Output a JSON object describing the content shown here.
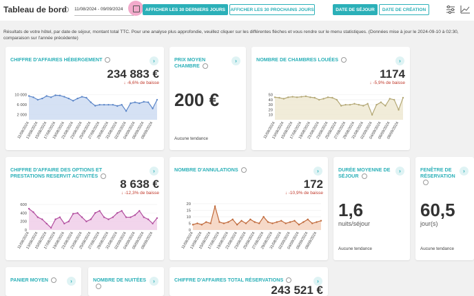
{
  "header": {
    "title": "Tableau de bord",
    "date_range": "11/08/2024 - 09/09/2024",
    "buttons": [
      "AFFICHER LES 30 DERNIERS JOURS",
      "AFFICHER LES 30 PROCHAINS JOURS"
    ],
    "toggles": [
      "DATE DE SÉJOUR",
      "DATE DE CRÉATION"
    ]
  },
  "intro": "Résultats de votre hôtel, par date de séjour, montant total TTC. Pour une analyse plus approfondie, veuillez cliquer sur les différentes flèches et vous rendre sur le menu statistiques. (Données mise à jour le 2024-09-10 à 02:30, comparaison sur l'année précédente)",
  "cards": [
    {
      "title": "CHIFFRE D'AFFAIRES HÉBERGEMENT",
      "value": "234 883 €",
      "trend": "↓ -6,6% de baisse",
      "chart": {
        "type": "area",
        "color": "#5a85c8",
        "fill": "#cbd9f1",
        "categories": [
          "11/08/2024",
          null,
          "13/08/2024",
          null,
          "15/08/2024",
          null,
          "17/08/2024",
          null,
          "19/08/2024",
          null,
          "21/08/2024",
          null,
          "23/08/2024",
          null,
          "25/08/2024",
          null,
          "27/08/2024",
          null,
          "29/08/2024",
          null,
          "31/08/2024",
          null,
          "02/09/2024",
          null,
          "04/09/2024",
          null,
          "06/09/2024",
          null,
          "08/09/2024",
          null
        ],
        "values": [
          9500,
          9000,
          8000,
          8500,
          9500,
          9000,
          9800,
          9700,
          9200,
          8500,
          7600,
          8500,
          9200,
          8800,
          7000,
          5600,
          6000,
          6000,
          6000,
          6000,
          5500,
          6000,
          3500,
          6600,
          7000,
          6600,
          7200,
          7000,
          4500,
          8000
        ],
        "ylim": [
          0,
          11000
        ],
        "yticks": [
          {
            "value": 10000,
            "label": "10 000"
          },
          {
            "value": 6000,
            "label": "6 000"
          },
          {
            "value": 2000,
            "label": "2 000"
          }
        ]
      }
    },
    {
      "title": "PRIX MOYEN CHAMBRE",
      "value": "200 €",
      "trend_note": "Aucune tendance"
    },
    {
      "title": "NOMBRE DE CHAMBRES LOUÉES",
      "value": "1174",
      "trend": "↓ -5,9% de baisse",
      "chart": {
        "type": "area",
        "color": "#b3a774",
        "fill": "#ede7d0",
        "categories": [
          "11/08/2024",
          null,
          "13/08/2024",
          null,
          "15/08/2024",
          null,
          "17/08/2024",
          null,
          "19/08/2024",
          null,
          "21/08/2024",
          null,
          "23/08/2024",
          null,
          "25/08/2024",
          null,
          "27/08/2024",
          null,
          "29/08/2024",
          null,
          "31/08/2024",
          null,
          "02/09/2024",
          null,
          "04/09/2024",
          null,
          "06/09/2024",
          null,
          "08/09/2024",
          null
        ],
        "values": [
          45,
          44,
          42,
          45,
          46,
          45,
          46,
          47,
          45,
          44,
          40,
          42,
          45,
          44,
          40,
          28,
          30,
          30,
          32,
          30,
          28,
          32,
          10,
          30,
          35,
          28,
          42,
          40,
          20,
          44
        ],
        "ylim": [
          0,
          55
        ],
        "yticks": [
          50,
          40,
          30,
          20,
          10
        ]
      }
    },
    {
      "title": "CHIFFRE D'AFFAIRE DES OPTIONS ET PRESTATIONS RESERVIT ACTIVITÉS",
      "value": "8 638 €",
      "trend": "↓ -12,3% de baisse",
      "chart": {
        "type": "area",
        "color": "#b14c9e",
        "fill": "#efcbe7",
        "categories": [
          "11/08/2024",
          null,
          "13/08/2024",
          null,
          "15/08/2024",
          null,
          "17/08/2024",
          null,
          "19/08/2024",
          null,
          "21/08/2024",
          null,
          "23/08/2024",
          null,
          "25/08/2024",
          null,
          "27/08/2024",
          null,
          "29/08/2024",
          null,
          "31/08/2024",
          null,
          "02/09/2024",
          null,
          "04/09/2024",
          null,
          "06/09/2024",
          null,
          "08/09/2024",
          null
        ],
        "values": [
          500,
          420,
          300,
          250,
          150,
          50,
          250,
          300,
          150,
          200,
          380,
          400,
          300,
          200,
          250,
          400,
          450,
          300,
          250,
          300,
          400,
          450,
          300,
          300,
          350,
          450,
          300,
          250,
          150,
          280
        ],
        "ylim": [
          0,
          650
        ],
        "yticks": [
          600,
          400,
          200,
          0
        ]
      }
    },
    {
      "title": "NOMBRE D'ANNULATIONS",
      "value": "172",
      "trend": "↓ -10,9% de baisse",
      "chart": {
        "type": "area",
        "color": "#c0693a",
        "fill": "#f4cfba",
        "categories": [
          "11/08/2024",
          null,
          "13/08/2024",
          null,
          "15/08/2024",
          null,
          "17/08/2024",
          null,
          "19/08/2024",
          null,
          "21/08/2024",
          null,
          "23/08/2024",
          null,
          "25/08/2024",
          null,
          "27/08/2024",
          null,
          "29/08/2024",
          null,
          "31/08/2024",
          null,
          "02/09/2024",
          null,
          "04/09/2024",
          null,
          "06/09/2024",
          null,
          "08/09/2024",
          null
        ],
        "values": [
          4,
          5,
          4,
          6,
          5,
          18,
          6,
          5,
          6,
          8,
          4,
          7,
          5,
          8,
          6,
          5,
          10,
          6,
          5,
          6,
          7,
          5,
          6,
          7,
          4,
          6,
          8,
          5,
          6,
          7
        ],
        "ylim": [
          0,
          21
        ],
        "yticks": [
          20,
          15,
          10,
          5,
          0
        ]
      }
    },
    {
      "title": "DURÉE MOYENNE DE SÉJOUR",
      "value": "1,6",
      "unit": "nuits/séjour",
      "trend_note": "Aucune tendance"
    },
    {
      "title": "FENÊTRE DE RÉSERVATION",
      "value": "60,5",
      "unit": "jour(s)",
      "trend_note": "Aucune tendance"
    },
    {
      "title": "PANIER MOYEN"
    },
    {
      "title": "NOMBRE DE NUITÉES"
    },
    {
      "title": "CHIFFRE D'AFFAIRES TOTAL RÉSERVATIONS",
      "value": "243 521 €"
    }
  ]
}
